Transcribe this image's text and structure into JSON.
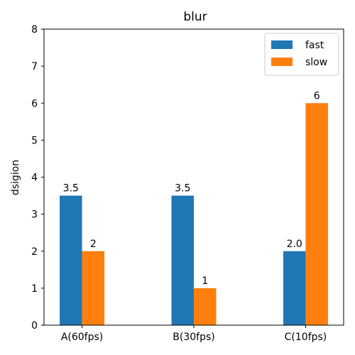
{
  "chart_data": {
    "type": "bar",
    "title": "blur",
    "xlabel": "",
    "ylabel": "dsigion",
    "categories": [
      "A(60fps)",
      "B(30fps)",
      "C(10fps)"
    ],
    "series": [
      {
        "name": "fast",
        "values": [
          3.5,
          3.5,
          2.0
        ],
        "labels": [
          "3.5",
          "3.5",
          "2.0"
        ],
        "color": "#1f77b4"
      },
      {
        "name": "slow",
        "values": [
          2,
          1,
          6
        ],
        "labels": [
          "2",
          "1",
          "6"
        ],
        "color": "#ff7f0e"
      }
    ],
    "ylim": [
      0,
      8
    ],
    "yticks": [
      "0",
      "1",
      "2",
      "3",
      "4",
      "5",
      "6",
      "7",
      "8"
    ],
    "grid": false,
    "legend": "top-right"
  }
}
